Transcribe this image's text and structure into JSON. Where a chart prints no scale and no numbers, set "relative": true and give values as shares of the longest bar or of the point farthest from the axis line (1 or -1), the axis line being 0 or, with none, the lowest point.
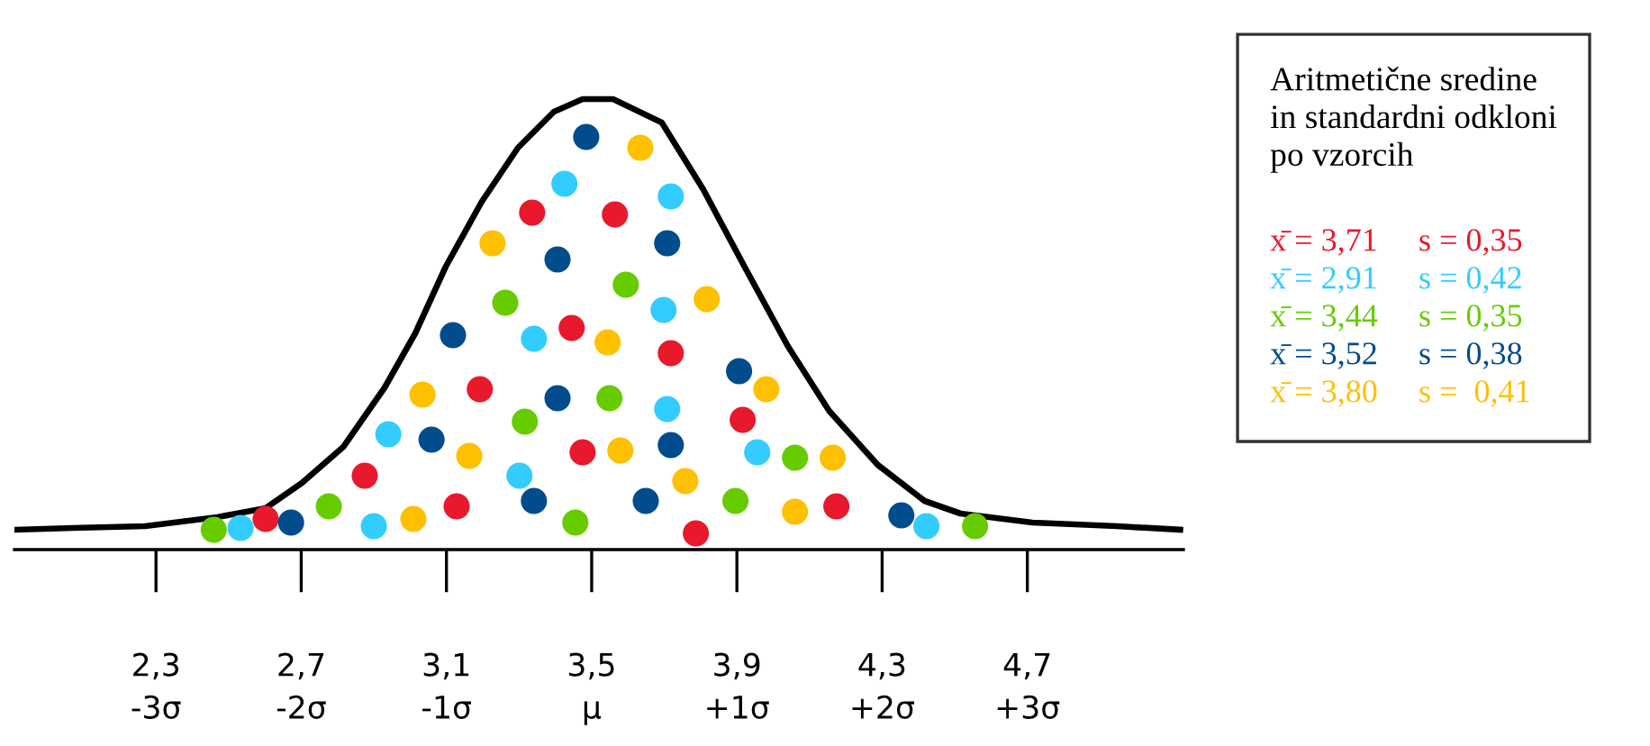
{
  "chart_data": {
    "type": "line",
    "relative": true,
    "legend": "right",
    "legend_title": "Aritmetične sredine\nin standardni odkloni\npo vzorcih",
    "xlim": [
      1.91,
      5.13
    ],
    "xticks": [
      {
        "value": 2.3,
        "label": "2,3"
      },
      {
        "value": 2.7,
        "label": "2,7"
      },
      {
        "value": 3.1,
        "label": "3,1"
      },
      {
        "value": 3.5,
        "label": "3,5"
      },
      {
        "value": 3.9,
        "label": "3,9"
      },
      {
        "value": 4.3,
        "label": "4,3"
      },
      {
        "value": 4.7,
        "label": "4,7"
      }
    ],
    "x2lim": [
      -3.975,
      4.075
    ],
    "x2ticks": [
      {
        "value": -3,
        "label": "-3σ"
      },
      {
        "value": -2,
        "label": "-2σ"
      },
      {
        "value": -1,
        "label": "-1σ"
      },
      {
        "value": 0,
        "label": "μ"
      },
      {
        "value": 1,
        "label": "+1σ"
      },
      {
        "value": 2,
        "label": "+2σ"
      },
      {
        "value": 3,
        "label": "+3σ"
      }
    ],
    "series": [
      {
        "color": "#000000",
        "marker": "none",
        "line_style": "solid",
        "x": [
          1.913,
          2.072,
          2.27,
          2.469,
          2.602,
          2.702,
          2.816,
          2.93,
          3.014,
          3.098,
          3.197,
          3.297,
          3.396,
          3.475,
          3.559,
          3.693,
          3.807,
          3.921,
          4.04,
          4.154,
          4.288,
          4.417,
          4.516,
          4.714,
          4.947,
          5.121
        ],
        "values": [
          0.044,
          0.048,
          0.052,
          0.072,
          0.092,
          0.148,
          0.228,
          0.36,
          0.48,
          0.628,
          0.772,
          0.892,
          0.972,
          1.0,
          1.0,
          0.948,
          0.8,
          0.628,
          0.452,
          0.308,
          0.188,
          0.108,
          0.08,
          0.06,
          0.052,
          0.044
        ]
      },
      {
        "type": "scatter",
        "name": "x̄ = 3,71     s = 0,35",
        "color": "#e8192c",
        "marker": "circle",
        "x": [
          3.336,
          3.564,
          3.445,
          3.718,
          3.192,
          3.475,
          2.875,
          3.128,
          2.602,
          3.787,
          3.916,
          4.174
        ],
        "values": [
          0.748,
          0.744,
          0.492,
          0.436,
          0.356,
          0.216,
          0.164,
          0.096,
          0.068,
          0.036,
          0.288,
          0.096
        ]
      },
      {
        "type": "scatter",
        "name": "x̄ = 2,91     s = 0,42",
        "color": "#33ccff",
        "marker": "circle",
        "x": [
          3.425,
          3.718,
          3.698,
          3.341,
          3.708,
          2.94,
          3.301,
          2.533,
          2.9,
          3.956,
          4.422
        ],
        "values": [
          0.812,
          0.784,
          0.532,
          0.468,
          0.312,
          0.256,
          0.164,
          0.048,
          0.052,
          0.216,
          0.052
        ]
      },
      {
        "type": "scatter",
        "name": "x̄ = 3,44     s = 0,35",
        "color": "#66cc00",
        "marker": "circle",
        "x": [
          3.594,
          3.262,
          3.549,
          3.316,
          2.776,
          2.459,
          3.455,
          4.06,
          3.896,
          4.556
        ],
        "values": [
          0.588,
          0.548,
          0.336,
          0.284,
          0.096,
          0.044,
          0.06,
          0.204,
          0.108,
          0.052
        ]
      },
      {
        "type": "scatter",
        "name": "x̄ = 3,52     s = 0,38",
        "color": "#004c8c",
        "marker": "circle",
        "x": [
          3.485,
          3.708,
          3.406,
          3.118,
          3.406,
          3.059,
          3.718,
          3.341,
          3.649,
          2.672,
          3.906,
          4.353
        ],
        "values": [
          0.916,
          0.68,
          0.644,
          0.476,
          0.336,
          0.244,
          0.232,
          0.108,
          0.108,
          0.06,
          0.396,
          0.076
        ]
      },
      {
        "type": "scatter",
        "name": "x̄ = 3,80     s =  0,41",
        "color": "#ffc000",
        "marker": "circle",
        "x": [
          3.634,
          3.227,
          3.544,
          3.034,
          3.163,
          3.579,
          3.009,
          3.758,
          3.817,
          3.981,
          4.164,
          4.06
        ],
        "values": [
          0.892,
          0.68,
          0.46,
          0.344,
          0.208,
          0.22,
          0.068,
          0.152,
          0.556,
          0.356,
          0.204,
          0.084
        ]
      }
    ]
  }
}
